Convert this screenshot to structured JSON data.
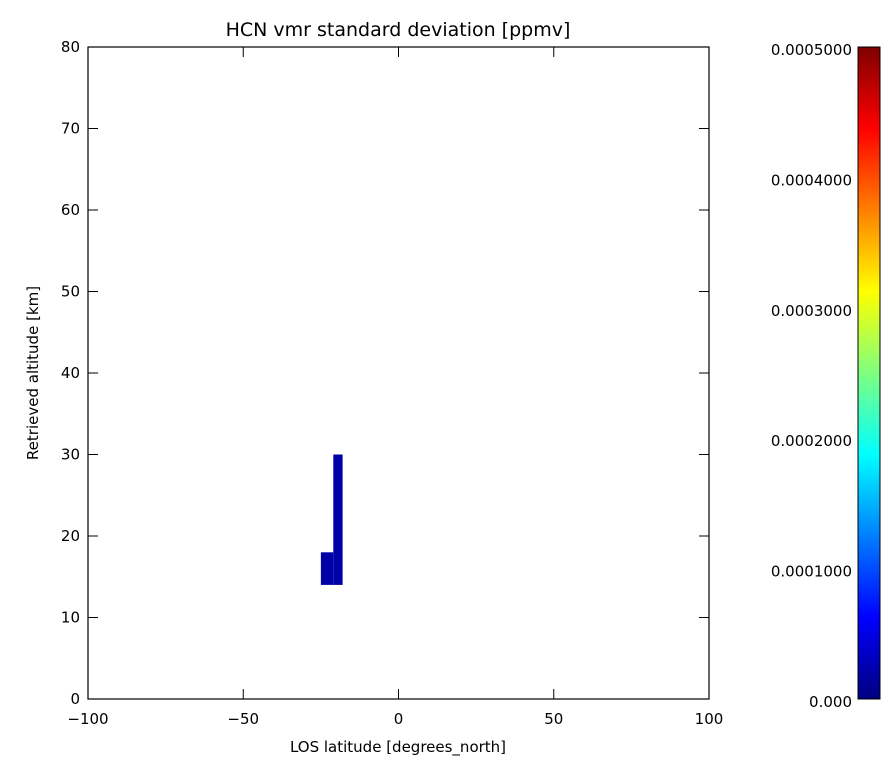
{
  "chart_data": {
    "type": "heatmap",
    "title": "HCN vmr standard deviation [ppmv]",
    "xlabel": "LOS latitude [degrees_north]",
    "ylabel": "Retrieved altitude [km]",
    "xlim": [
      -100,
      100
    ],
    "ylim": [
      0,
      80
    ],
    "x_ticks": [
      -100,
      -50,
      0,
      50,
      100
    ],
    "x_tick_labels": [
      "−100",
      "−50",
      "0",
      "50",
      "100"
    ],
    "y_ticks": [
      0,
      10,
      20,
      30,
      40,
      50,
      60,
      70,
      80
    ],
    "y_tick_labels": [
      "0",
      "10",
      "20",
      "30",
      "40",
      "50",
      "60",
      "70",
      "80"
    ],
    "grid": false,
    "cells": [
      {
        "x0": -25,
        "x1": -21,
        "y0": 14,
        "y1": 18,
        "value": 2e-05
      },
      {
        "x0": -21,
        "x1": -18,
        "y0": 14,
        "y1": 30,
        "value": 2e-05
      }
    ],
    "colorbar": {
      "min": 0.0,
      "max": 0.0005,
      "ticks": [
        0.0,
        0.0001,
        0.0002,
        0.0003,
        0.0004,
        0.0005
      ],
      "tick_labels": [
        "0.000",
        "0.0001000",
        "0.0002000",
        "0.0003000",
        "0.0004000",
        "0.0005000"
      ],
      "colormap": [
        "#00007f",
        "#0000ff",
        "#007fff",
        "#00ffff",
        "#7fff7f",
        "#ffff00",
        "#ff7f00",
        "#ff0000",
        "#7f0000"
      ],
      "placement": "right"
    }
  }
}
